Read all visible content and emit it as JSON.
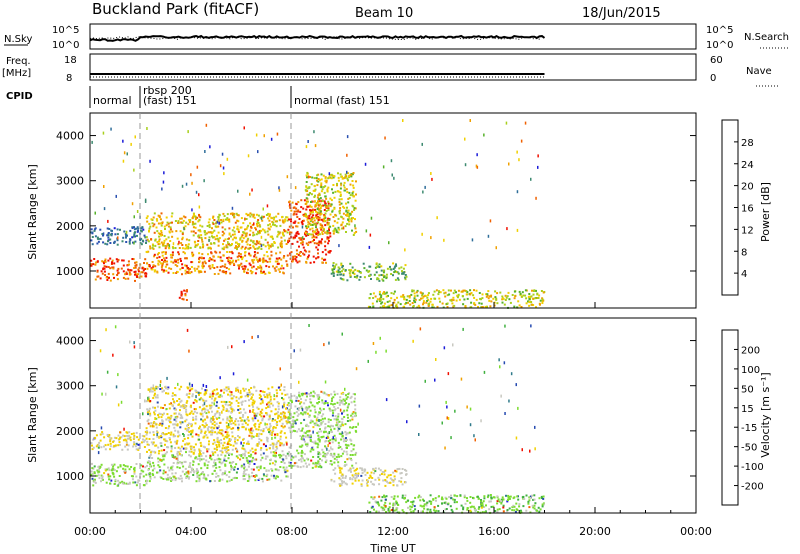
{
  "header": {
    "station": "Buckland Park (fitACF)",
    "beam": "Beam 10",
    "date": "18/Jun/2015"
  },
  "strip_labels": {
    "nsky": "N.Sky",
    "nsearch": "N.Search",
    "freq_line1": "Freq.",
    "freq_line2": "[MHz]",
    "nave": "Nave",
    "cpid": "CPID"
  },
  "strip_ticks": {
    "nsky_top": "10^5",
    "nsky_bottom": "10^0",
    "freq_top": "18",
    "freq_bottom": "8",
    "nave_top": "60",
    "nave_bottom": "0"
  },
  "cpid_modes": [
    {
      "label": "normal",
      "start_hour": 0
    },
    {
      "label": "rbsp 200",
      "start_hour": 2
    },
    {
      "label": "(fast) 151",
      "start_hour": 2
    },
    {
      "label": "normal (fast) 151",
      "start_hour": 8
    }
  ],
  "colors": {
    "power_scale": [
      "#1b1bd8",
      "#2a50b0",
      "#2f6e9a",
      "#3d8a70",
      "#55b02a",
      "#a8cf1c",
      "#f0d000",
      "#f0a000",
      "#f06000",
      "#f01000"
    ],
    "velocity_scale": [
      "#1b1bd8",
      "#254ab0",
      "#2f7a8a",
      "#40b040",
      "#7cdc30",
      "#c8c8c0",
      "#f0d000",
      "#f0a000",
      "#f06000",
      "#f01000"
    ]
  },
  "chart_data": [
    {
      "type": "heatmap",
      "name": "power",
      "ylabel": "Slant Range [km]",
      "xlabel": "Time UT",
      "x_ticks": [
        "00:00",
        "04:00",
        "08:00",
        "12:00",
        "16:00",
        "20:00",
        "00:00"
      ],
      "xlim_hours": [
        0,
        24
      ],
      "y_ticks": [
        1000,
        2000,
        3000,
        4000
      ],
      "ylim_km": [
        180,
        4500
      ],
      "colorbar": {
        "label": "Power [dB]",
        "ticks": [
          "4",
          "8",
          "12",
          "16",
          "20",
          "24",
          "28"
        ],
        "range": [
          0,
          30
        ]
      },
      "regions": [
        {
          "t0": 0.0,
          "t1": 2.2,
          "r0": 800,
          "r1": 1300,
          "value": 26
        },
        {
          "t0": 0.0,
          "t1": 2.2,
          "r0": 1600,
          "r1": 2000,
          "value": 7
        },
        {
          "t0": 2.2,
          "t1": 7.8,
          "r0": 950,
          "r1": 1450,
          "value": 24
        },
        {
          "t0": 2.2,
          "t1": 7.8,
          "r0": 1500,
          "r1": 2300,
          "value": 20
        },
        {
          "t0": 3.5,
          "t1": 4.0,
          "r0": 350,
          "r1": 600,
          "value": 28
        },
        {
          "t0": 7.8,
          "t1": 9.5,
          "r0": 1200,
          "r1": 2600,
          "value": 27
        },
        {
          "t0": 8.5,
          "t1": 10.5,
          "r0": 1800,
          "r1": 3200,
          "value": 18
        },
        {
          "t0": 9.5,
          "t1": 12.5,
          "r0": 800,
          "r1": 1200,
          "value": 14
        },
        {
          "t0": 11.0,
          "t1": 18.0,
          "r0": 200,
          "r1": 600,
          "value": 18
        }
      ]
    },
    {
      "type": "heatmap",
      "name": "velocity",
      "ylabel": "Slant Range [km]",
      "xlabel": "Time UT",
      "x_ticks": [
        "00:00",
        "04:00",
        "08:00",
        "12:00",
        "16:00",
        "20:00",
        "00:00"
      ],
      "xlim_hours": [
        0,
        24
      ],
      "y_ticks": [
        1000,
        2000,
        3000,
        4000
      ],
      "ylim_km": [
        180,
        4500
      ],
      "colorbar": {
        "label": "Velocity [m s⁻¹]",
        "ticks": [
          "200",
          "100",
          "50",
          "15",
          "-15",
          "-50",
          "-100",
          "-200"
        ],
        "range": [
          -250,
          250
        ]
      },
      "regions": [
        {
          "t0": 0.0,
          "t1": 2.2,
          "r0": 800,
          "r1": 1300,
          "value": 0
        },
        {
          "t0": 0.0,
          "t1": 2.2,
          "r0": 1600,
          "r1": 2000,
          "value": 40
        },
        {
          "t0": 2.2,
          "t1": 7.8,
          "r0": 900,
          "r1": 1500,
          "value": 0
        },
        {
          "t0": 2.2,
          "t1": 7.8,
          "r0": 1500,
          "r1": 3000,
          "value": 60
        },
        {
          "t0": 7.8,
          "t1": 10.5,
          "r0": 1200,
          "r1": 2900,
          "value": 0
        },
        {
          "t0": 9.5,
          "t1": 12.5,
          "r0": 800,
          "r1": 1200,
          "value": 40
        },
        {
          "t0": 11.0,
          "t1": 18.0,
          "r0": 200,
          "r1": 600,
          "value": -30
        }
      ]
    }
  ]
}
